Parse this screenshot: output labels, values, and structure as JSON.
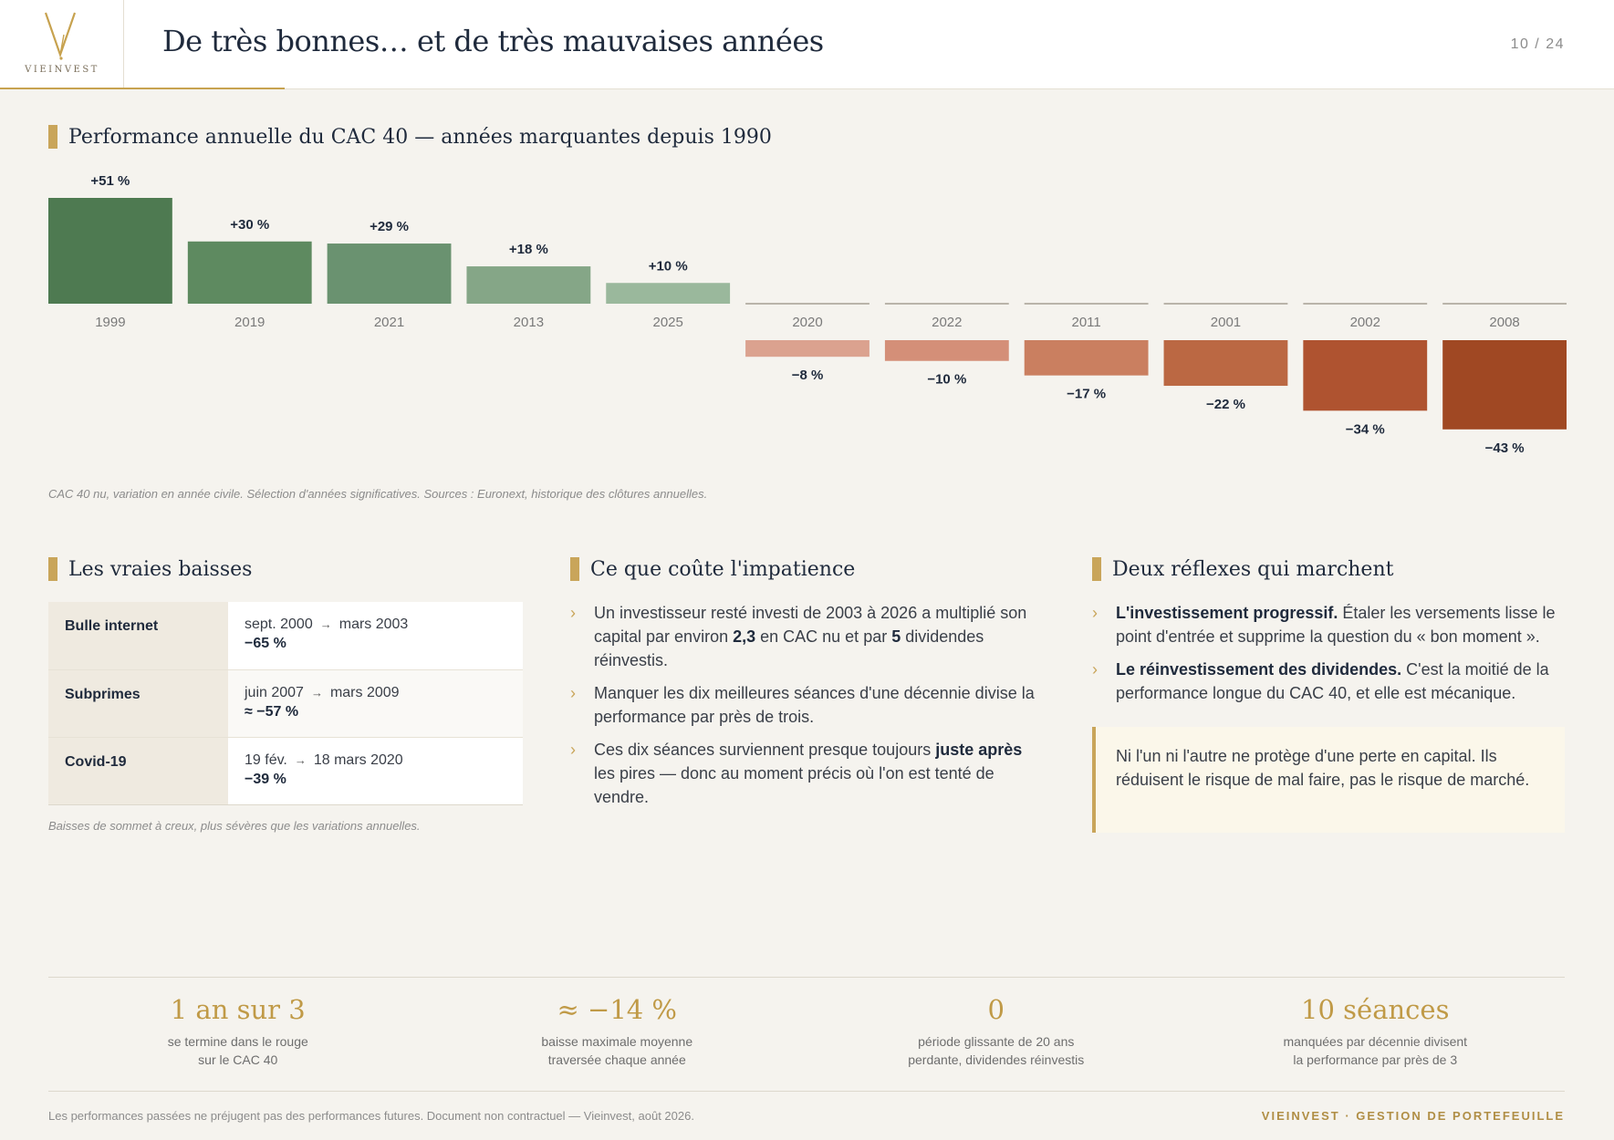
{
  "header": {
    "logo_text": "VIEINVEST",
    "title": "De très bonnes… et de très mauvaises années",
    "page": "10 / 24"
  },
  "chart_section": {
    "title": "Performance annuelle du CAC 40 — années marquantes depuis 1990",
    "note": "CAC 40 nu, variation en année civile. Sélection d'années significatives. Sources : Euronext, historique des clôtures annuelles."
  },
  "chart_data": {
    "type": "bar",
    "categories": [
      "1999",
      "2019",
      "2021",
      "2013",
      "2025",
      "2020",
      "2022",
      "2011",
      "2001",
      "2002",
      "2008"
    ],
    "values": [
      51,
      30,
      29,
      18,
      10,
      -8,
      -10,
      -17,
      -22,
      -34,
      -43
    ],
    "value_labels": [
      "+51 %",
      "+30 %",
      "+29 %",
      "+18 %",
      "+10 %",
      "−8 %",
      "−10 %",
      "−17 %",
      "−22 %",
      "−34 %",
      "−43 %"
    ],
    "colors": [
      "#4e7a51",
      "#5e8a60",
      "#6a9270",
      "#85a687",
      "#9ab89c",
      "#dba28f",
      "#d48f78",
      "#ca7f60",
      "#bb6843",
      "#af5330",
      "#a04823"
    ],
    "title": "Performance annuelle du CAC 40 — années marquantes depuis 1990",
    "ylabel": "",
    "xlabel": "",
    "grid": false
  },
  "drawdowns": {
    "title": "Les vraies baisses",
    "rows": [
      {
        "name": "Bulle internet",
        "start": "sept. 2000",
        "arrow": "→",
        "end": "mars 2003",
        "pct": "−65 %"
      },
      {
        "name": "Subprimes",
        "start": "juin 2007",
        "arrow": "→",
        "end": "mars 2009",
        "pct": "≈ −57 %"
      },
      {
        "name": "Covid-19",
        "start": "19 fév.",
        "arrow": "→",
        "end": "18 mars 2020",
        "pct": "−39 %"
      }
    ],
    "note": "Baisses de sommet à creux, plus sévères que les variations annuelles."
  },
  "impatience": {
    "title": "Ce que coûte l'impatience",
    "bullet": "›",
    "b1_a": "Un investisseur resté investi de 2003 à 2026 a multiplié son capital par environ ",
    "b1_b": "2,3",
    "b1_c": " en CAC nu et par ",
    "b1_d": "5",
    "b1_e": " dividendes réinvestis.",
    "b2": "Manquer les dix meilleures séances d'une décennie divise la performance par près de trois.",
    "b3_a": "Ces dix séances surviennent presque toujours ",
    "b3_b": "juste après",
    "b3_c": " les pires — donc au moment précis où l'on est tenté de vendre."
  },
  "reflexes": {
    "title": "Deux réflexes qui marchent",
    "b1_bold": "L'investissement progressif.",
    "b1_text": " Étaler les versements lisse le point d'entrée et supprime la question du « bon moment ».",
    "b2_bold": "Le réinvestissement des dividendes.",
    "b2_text": " C'est la moitié de la performance longue du CAC 40, et elle est mécanique.",
    "callout": "Ni l'un ni l'autre ne protège d'une perte en capital. Ils réduisent le risque de mal faire, pas le risque de marché."
  },
  "stats": [
    {
      "big": "1 an sur 3",
      "l1": "se termine dans le rouge",
      "l2": "sur le CAC 40"
    },
    {
      "big": "≈ −14 %",
      "l1": "baisse maximale moyenne",
      "l2": "traversée chaque année"
    },
    {
      "big": "0",
      "l1": "période glissante de 20 ans",
      "l2": "perdante, dividendes réinvestis"
    },
    {
      "big": "10 séances",
      "l1": "manquées par décennie divisent",
      "l2": "la performance par près de 3"
    }
  ],
  "footer": {
    "left": "Les performances passées ne préjugent pas des performances futures. Document non contractuel — Vieinvest, août 2026.",
    "right": "VIEINVEST · GESTION DE PORTEFEUILLE"
  }
}
